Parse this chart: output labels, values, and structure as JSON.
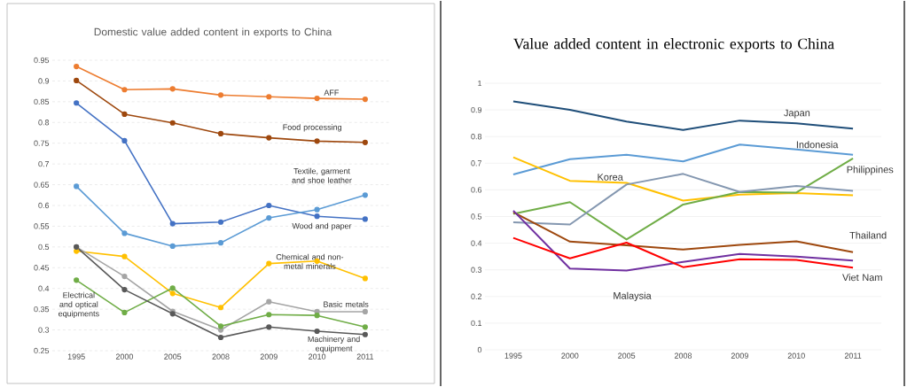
{
  "chart_data": [
    {
      "type": "line",
      "title": "Domestic value added content in exports to China",
      "categories": [
        "1995",
        "2000",
        "2005",
        "2008",
        "2009",
        "2010",
        "2011"
      ],
      "ylim": [
        0.25,
        0.95
      ],
      "yticks": [
        0.25,
        0.3,
        0.35,
        0.4,
        0.45,
        0.5,
        0.55,
        0.6,
        0.65,
        0.7,
        0.75,
        0.8,
        0.85,
        0.9,
        0.95
      ],
      "grid": "y",
      "marker": "circle",
      "series": [
        {
          "name": "AFF",
          "color": "#ed7d31",
          "values": [
            0.935,
            0.879,
            0.881,
            0.866,
            0.862,
            0.858,
            0.856
          ]
        },
        {
          "name": "Food processing",
          "color": "#9e480e",
          "values": [
            0.901,
            0.82,
            0.799,
            0.773,
            0.763,
            0.755,
            0.752
          ]
        },
        {
          "name": "Wood and paper",
          "color": "#4472c4",
          "values": [
            0.847,
            0.756,
            0.556,
            0.56,
            0.6,
            0.574,
            0.567
          ]
        },
        {
          "name": "Textile, garment and shoe leather",
          "color": "#5b9bd5",
          "values": [
            0.646,
            0.533,
            0.502,
            0.51,
            0.57,
            0.59,
            0.625
          ]
        },
        {
          "name": "Chemical and non-metal minerals",
          "color": "#ffc000",
          "values": [
            0.49,
            0.477,
            0.388,
            0.354,
            0.46,
            0.466,
            0.424
          ]
        },
        {
          "name": "Basic metals",
          "color": "#a5a5a5",
          "values": [
            0.5,
            0.429,
            0.345,
            0.3,
            0.368,
            0.344,
            0.344
          ]
        },
        {
          "name": "Electrical and optical equipments",
          "color": "#70ad47",
          "values": [
            0.42,
            0.342,
            0.401,
            0.309,
            0.337,
            0.335,
            0.307
          ]
        },
        {
          "name": "Machinery and equipment",
          "color": "#595959",
          "values": [
            0.5,
            0.397,
            0.339,
            0.282,
            0.307,
            0.297,
            0.289
          ]
        }
      ]
    },
    {
      "type": "line",
      "title": "Value added content in electronic exports to China",
      "categories": [
        "1995",
        "2000",
        "2005",
        "2008",
        "2009",
        "2010",
        "2011"
      ],
      "ylim": [
        0,
        1
      ],
      "yticks": [
        0,
        0.1,
        0.2,
        0.3,
        0.4,
        0.5,
        0.6,
        0.7,
        0.8,
        0.9,
        1
      ],
      "grid": "y",
      "series": [
        {
          "name": "Japan",
          "color": "#1f4e79",
          "values": [
            0.932,
            0.9,
            0.856,
            0.825,
            0.86,
            0.85,
            0.83
          ]
        },
        {
          "name": "Indonesia",
          "color": "#5b9bd5",
          "values": [
            0.658,
            0.715,
            0.732,
            0.707,
            0.77,
            0.752,
            0.732
          ]
        },
        {
          "name": "Korea",
          "color": "#ffc000",
          "values": [
            0.722,
            0.634,
            0.626,
            0.56,
            0.582,
            0.588,
            0.58
          ]
        },
        {
          "name": "Philippines",
          "color": "#70ad47",
          "values": [
            0.51,
            0.554,
            0.414,
            0.545,
            0.592,
            0.59,
            0.718
          ]
        },
        {
          "color": "#8497b0",
          "values": [
            0.478,
            0.47,
            0.62,
            0.66,
            0.592,
            0.615,
            0.596
          ]
        },
        {
          "name": "Thailand",
          "color": "#9e480e",
          "values": [
            0.516,
            0.406,
            0.392,
            0.376,
            0.394,
            0.407,
            0.366
          ]
        },
        {
          "name": "Malaysia",
          "color": "#7030a0",
          "values": [
            0.522,
            0.305,
            0.297,
            0.33,
            0.36,
            0.35,
            0.335
          ]
        },
        {
          "name": "Viet Nam",
          "color": "#ff0000",
          "values": [
            0.42,
            0.343,
            0.402,
            0.31,
            0.34,
            0.337,
            0.308
          ]
        }
      ]
    }
  ]
}
